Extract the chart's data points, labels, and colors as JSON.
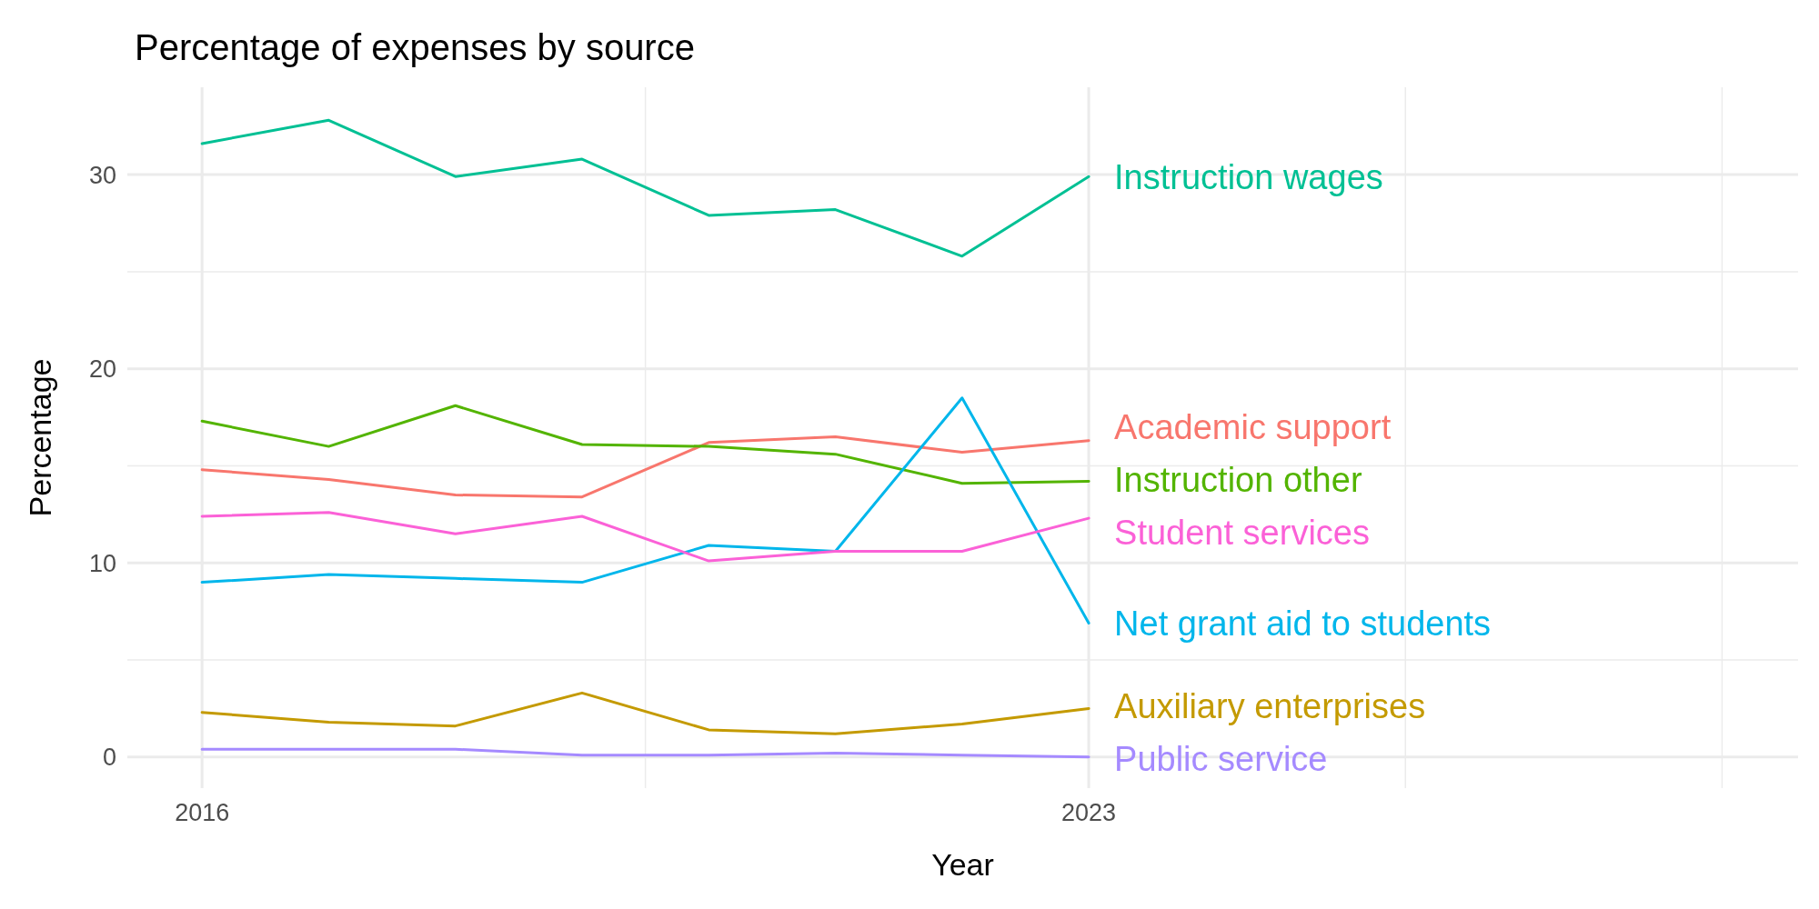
{
  "chart_data": {
    "type": "line",
    "title": "Percentage of expenses by source",
    "xlabel": "Year",
    "ylabel": "Percentage",
    "x": [
      2016,
      2017,
      2018,
      2019,
      2020,
      2021,
      2022,
      2023
    ],
    "xlim": [
      2015.41,
      2028.6
    ],
    "xticks": [
      2016,
      {
        "value": 2019.5,
        "label": null
      },
      2023,
      {
        "value": 2025.5,
        "label": null
      },
      {
        "value": 2028,
        "label": null
      }
    ],
    "ylim": [
      -1.6,
      34.5
    ],
    "yticks": [
      0,
      {
        "value": 5,
        "label": null
      },
      10,
      {
        "value": 15,
        "label": null
      },
      20,
      {
        "value": 25,
        "label": null
      },
      30
    ],
    "grid": true,
    "legend": false,
    "line_style": "solid",
    "marker": "none",
    "series": [
      {
        "name": "Academic support",
        "color": "#f8766d",
        "values": [
          14.8,
          14.3,
          13.5,
          13.4,
          16.2,
          16.5,
          15.7,
          16.3
        ]
      },
      {
        "name": "Auxiliary enterprises",
        "color": "#c49a00",
        "values": [
          2.3,
          1.8,
          1.6,
          3.3,
          1.4,
          1.2,
          1.7,
          2.5
        ]
      },
      {
        "name": "Instruction other",
        "color": "#53b400",
        "values": [
          17.3,
          16.0,
          18.1,
          16.1,
          16.0,
          15.6,
          14.1,
          14.2
        ]
      },
      {
        "name": "Instruction wages",
        "color": "#00c094",
        "values": [
          31.6,
          32.8,
          29.9,
          30.8,
          27.9,
          28.2,
          25.8,
          29.9
        ]
      },
      {
        "name": "Net grant aid to students",
        "color": "#00b6eb",
        "values": [
          9.0,
          9.4,
          9.2,
          9.0,
          10.9,
          10.6,
          18.5,
          6.9
        ]
      },
      {
        "name": "Public service",
        "color": "#a58aff",
        "values": [
          0.4,
          0.4,
          0.4,
          0.1,
          0.1,
          0.2,
          0.1,
          0.0
        ]
      },
      {
        "name": "Student services",
        "color": "#fb61d7",
        "values": [
          12.4,
          12.6,
          11.5,
          12.4,
          10.1,
          10.6,
          10.6,
          12.3
        ]
      }
    ]
  }
}
